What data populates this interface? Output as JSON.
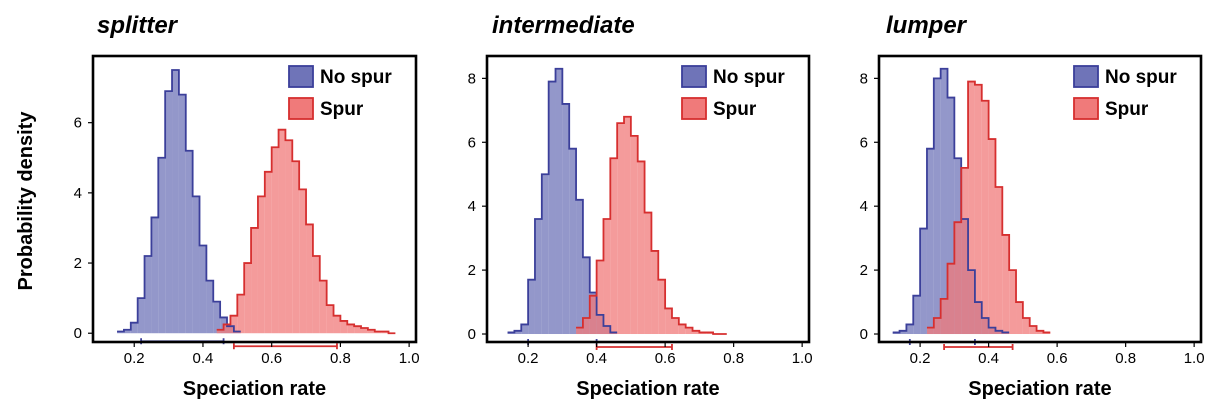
{
  "figure": {
    "ylabel": "Probability density",
    "xlabel": "Speciation rate"
  },
  "colors": {
    "no_spur_fill": "#6f74b8",
    "no_spur_line": "#3b3f9a",
    "spur_fill": "#f07a7a",
    "spur_line": "#d62f2f",
    "overlap_fill": "#b04f86"
  },
  "chart_data": [
    {
      "type": "histogram",
      "title": "splitter",
      "xlabel": "Speciation rate",
      "ylabel": "Probability density",
      "xlim": [
        0.08,
        1.02
      ],
      "ylim": [
        -0.25,
        7.9
      ],
      "xticks": [
        "0.2",
        "0.4",
        "0.6",
        "0.8",
        "1.0"
      ],
      "xtick_values": [
        0.2,
        0.4,
        0.6,
        0.8,
        1.0
      ],
      "yticks": [
        "0",
        "2",
        "4",
        "6"
      ],
      "ytick_values": [
        0,
        2,
        4,
        6
      ],
      "legend": {
        "position": "top-right",
        "entries": [
          "No spur",
          "Spur"
        ]
      },
      "series": [
        {
          "name": "No spur",
          "bin_edges": [
            0.15,
            0.17,
            0.19,
            0.21,
            0.23,
            0.25,
            0.27,
            0.29,
            0.31,
            0.33,
            0.35,
            0.37,
            0.39,
            0.41,
            0.43,
            0.45,
            0.47,
            0.49,
            0.51
          ],
          "density": [
            0.05,
            0.1,
            0.3,
            1.0,
            2.2,
            3.3,
            5.0,
            6.9,
            7.5,
            6.8,
            5.2,
            3.9,
            2.5,
            1.5,
            0.9,
            0.45,
            0.2,
            0.05
          ],
          "hpd_interval": [
            0.22,
            0.46
          ]
        },
        {
          "name": "Spur",
          "bin_edges": [
            0.44,
            0.46,
            0.48,
            0.5,
            0.52,
            0.54,
            0.56,
            0.58,
            0.6,
            0.62,
            0.64,
            0.66,
            0.68,
            0.7,
            0.72,
            0.74,
            0.76,
            0.78,
            0.8,
            0.82,
            0.84,
            0.86,
            0.88,
            0.9,
            0.92,
            0.94,
            0.96
          ],
          "density": [
            0.1,
            0.25,
            0.5,
            1.1,
            2.0,
            3.0,
            3.9,
            4.6,
            5.3,
            5.8,
            5.5,
            4.9,
            4.1,
            3.1,
            2.2,
            1.5,
            0.8,
            0.5,
            0.35,
            0.25,
            0.2,
            0.15,
            0.1,
            0.05,
            0.05,
            0.0
          ],
          "hpd_interval": [
            0.49,
            0.79
          ]
        }
      ]
    },
    {
      "type": "histogram",
      "title": "intermediate",
      "xlabel": "Speciation rate",
      "ylabel": "",
      "xlim": [
        0.08,
        1.02
      ],
      "ylim": [
        -0.25,
        8.7
      ],
      "xticks": [
        "0.2",
        "0.4",
        "0.6",
        "0.8",
        "1.0"
      ],
      "xtick_values": [
        0.2,
        0.4,
        0.6,
        0.8,
        1.0
      ],
      "yticks": [
        "0",
        "2",
        "4",
        "6",
        "8"
      ],
      "ytick_values": [
        0,
        2,
        4,
        6,
        8
      ],
      "legend": {
        "position": "top-right",
        "entries": [
          "No spur",
          "Spur"
        ]
      },
      "series": [
        {
          "name": "No spur",
          "bin_edges": [
            0.14,
            0.16,
            0.18,
            0.2,
            0.22,
            0.24,
            0.26,
            0.28,
            0.3,
            0.32,
            0.34,
            0.36,
            0.38,
            0.4,
            0.42,
            0.44,
            0.46
          ],
          "density": [
            0.05,
            0.1,
            0.3,
            1.7,
            3.6,
            5.0,
            7.9,
            8.3,
            7.2,
            5.8,
            4.2,
            2.4,
            1.3,
            0.6,
            0.25,
            0.05
          ],
          "hpd_interval": [
            0.2,
            0.4
          ]
        },
        {
          "name": "Spur",
          "bin_edges": [
            0.34,
            0.36,
            0.38,
            0.4,
            0.42,
            0.44,
            0.46,
            0.48,
            0.5,
            0.52,
            0.54,
            0.56,
            0.58,
            0.6,
            0.62,
            0.64,
            0.66,
            0.68,
            0.7,
            0.72,
            0.74,
            0.76,
            0.78
          ],
          "density": [
            0.2,
            0.5,
            1.2,
            2.3,
            3.6,
            5.5,
            6.6,
            6.8,
            6.2,
            5.4,
            3.8,
            2.6,
            1.7,
            0.8,
            0.5,
            0.3,
            0.2,
            0.1,
            0.05,
            0.05,
            0.0,
            0.0
          ],
          "hpd_interval": [
            0.4,
            0.62
          ]
        }
      ]
    },
    {
      "type": "histogram",
      "title": "lumper",
      "xlabel": "Speciation rate",
      "ylabel": "",
      "xlim": [
        0.08,
        1.02
      ],
      "ylim": [
        -0.25,
        8.7
      ],
      "xticks": [
        "0.2",
        "0.4",
        "0.6",
        "0.8",
        "1.0"
      ],
      "xtick_values": [
        0.2,
        0.4,
        0.6,
        0.8,
        1.0
      ],
      "yticks": [
        "0",
        "2",
        "4",
        "6",
        "8"
      ],
      "ytick_values": [
        0,
        2,
        4,
        6,
        8
      ],
      "legend": {
        "position": "top-right",
        "entries": [
          "No spur",
          "Spur"
        ]
      },
      "series": [
        {
          "name": "No spur",
          "bin_edges": [
            0.12,
            0.14,
            0.16,
            0.18,
            0.2,
            0.22,
            0.24,
            0.26,
            0.28,
            0.3,
            0.32,
            0.34,
            0.36,
            0.38,
            0.4,
            0.42,
            0.44,
            0.46
          ],
          "density": [
            0.05,
            0.1,
            0.3,
            1.2,
            3.3,
            5.8,
            8.0,
            8.3,
            7.4,
            5.5,
            3.6,
            2.0,
            1.0,
            0.5,
            0.2,
            0.1,
            0.05
          ],
          "hpd_interval": [
            0.17,
            0.36
          ]
        },
        {
          "name": "Spur",
          "bin_edges": [
            0.22,
            0.24,
            0.26,
            0.28,
            0.3,
            0.32,
            0.34,
            0.36,
            0.38,
            0.4,
            0.42,
            0.44,
            0.46,
            0.48,
            0.5,
            0.52,
            0.54,
            0.56,
            0.58
          ],
          "density": [
            0.2,
            0.5,
            1.1,
            2.2,
            3.5,
            5.2,
            7.9,
            7.8,
            7.3,
            6.1,
            4.6,
            3.1,
            2.0,
            1.0,
            0.5,
            0.25,
            0.1,
            0.05
          ],
          "hpd_interval": [
            0.27,
            0.47
          ]
        }
      ]
    }
  ]
}
